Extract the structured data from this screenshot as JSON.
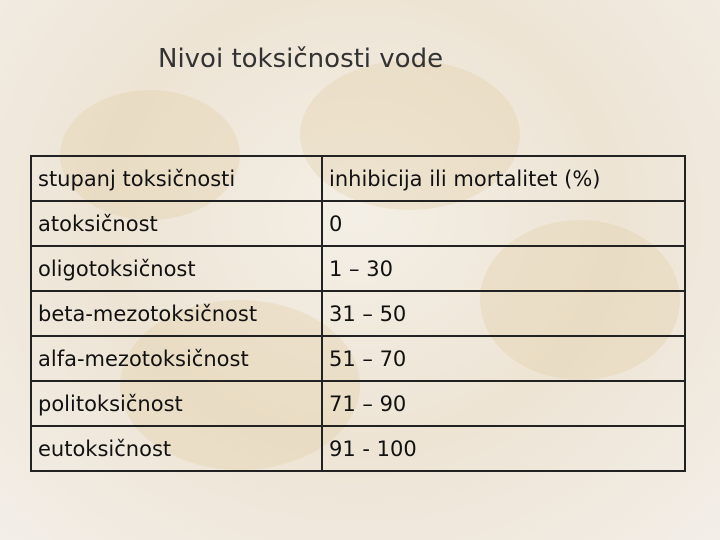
{
  "title": "Nivoi toksičnosti vode",
  "table": {
    "header": [
      "stupanj toksičnosti",
      "inhibicija ili mortalitet (%)"
    ],
    "rows": [
      [
        "atoksičnost",
        "0"
      ],
      [
        "oligotoksičnost",
        "1 – 30"
      ],
      [
        "beta-mezotoksičnost",
        "31 – 50"
      ],
      [
        "alfa-mezotoksičnost",
        "51 – 70"
      ],
      [
        "politoksičnost",
        "71 – 90"
      ],
      [
        "eutoksičnost",
        "91 - 100"
      ]
    ]
  }
}
